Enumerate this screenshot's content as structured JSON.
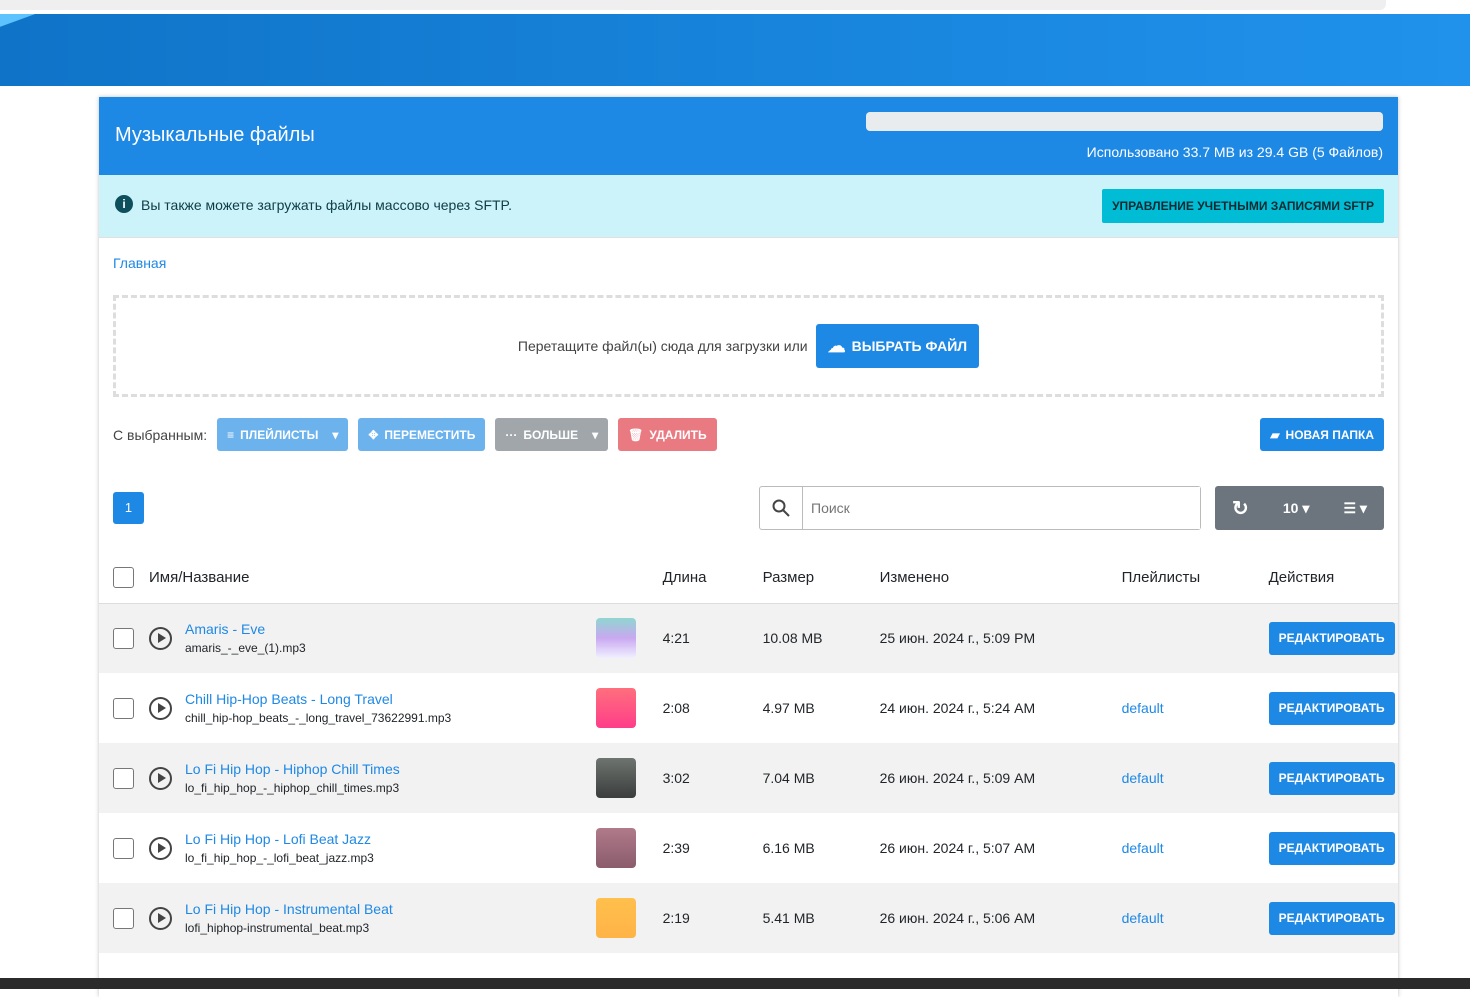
{
  "header": {
    "title": "Музыкальные файлы",
    "usage": "Использовано 33.7 MB из 29.4 GB (5 Файлов)",
    "usage_fraction": 0.001
  },
  "info": {
    "text": "Вы также можете загружать файлы массово через SFTP.",
    "button": "УПРАВЛЕНИЕ УЧЕТНЫМИ ЗАПИСЯМИ SFTP"
  },
  "breadcrumb": "Главная",
  "upload": {
    "text": "Перетащите файл(ы) сюда для загрузки или",
    "button": "ВЫБРАТЬ ФАЙЛ"
  },
  "selection": {
    "label": "С выбранным:",
    "playlists": "ПЛЕЙЛИСТЫ",
    "move": "ПЕРЕМЕСТИТЬ",
    "more": "БОЛЬШЕ",
    "delete": "УДАЛИТЬ",
    "new_folder": "НОВАЯ ПАПКА"
  },
  "pagination": {
    "current": "1"
  },
  "search": {
    "placeholder": "Поиск"
  },
  "per_page": "10",
  "columns": [
    "Имя/Название",
    "Длина",
    "Размер",
    "Изменено",
    "Плейлисты",
    "Действия"
  ],
  "edit_label": "РЕДАКТИРОВАТЬ",
  "rows": [
    {
      "title": "Amaris - Eve",
      "file": "amaris_-_eve_(1).mp3",
      "length": "4:21",
      "size": "10.08 MB",
      "modified": "25 июн. 2024 г., 5:09 PM",
      "playlist": "",
      "art": "linear-gradient(#8fd6d0,#c9a8f0 50%,#f0f0ff)"
    },
    {
      "title": "Chill Hip-Hop Beats - Long Travel",
      "file": "chill_hip-hop_beats_-_long_travel_73622991.mp3",
      "length": "2:08",
      "size": "4.97 MB",
      "modified": "24 июн. 2024 г., 5:24 AM",
      "playlist": "default",
      "art": "linear-gradient(#ff6f7d,#ff3d8a)"
    },
    {
      "title": "Lo Fi Hip Hop - Hiphop Chill Times",
      "file": "lo_fi_hip_hop_-_hiphop_chill_times.mp3",
      "length": "3:02",
      "size": "7.04 MB",
      "modified": "26 июн. 2024 г., 5:09 AM",
      "playlist": "default",
      "art": "linear-gradient(#6e7470,#3a3d3c)"
    },
    {
      "title": "Lo Fi Hip Hop - Lofi Beat Jazz",
      "file": "lo_fi_hip_hop_-_lofi_beat_jazz.mp3",
      "length": "2:39",
      "size": "6.16 MB",
      "modified": "26 июн. 2024 г., 5:07 AM",
      "playlist": "default",
      "art": "linear-gradient(#b07a8a,#8a5c6c)"
    },
    {
      "title": "Lo Fi Hip Hop - Instrumental Beat",
      "file": "lofi_hiphop-instrumental_beat.mp3",
      "length": "2:19",
      "size": "5.41 MB",
      "modified": "26 июн. 2024 г., 5:06 AM",
      "playlist": "default",
      "art": "linear-gradient(#ffc04d,#ffb347)"
    }
  ]
}
